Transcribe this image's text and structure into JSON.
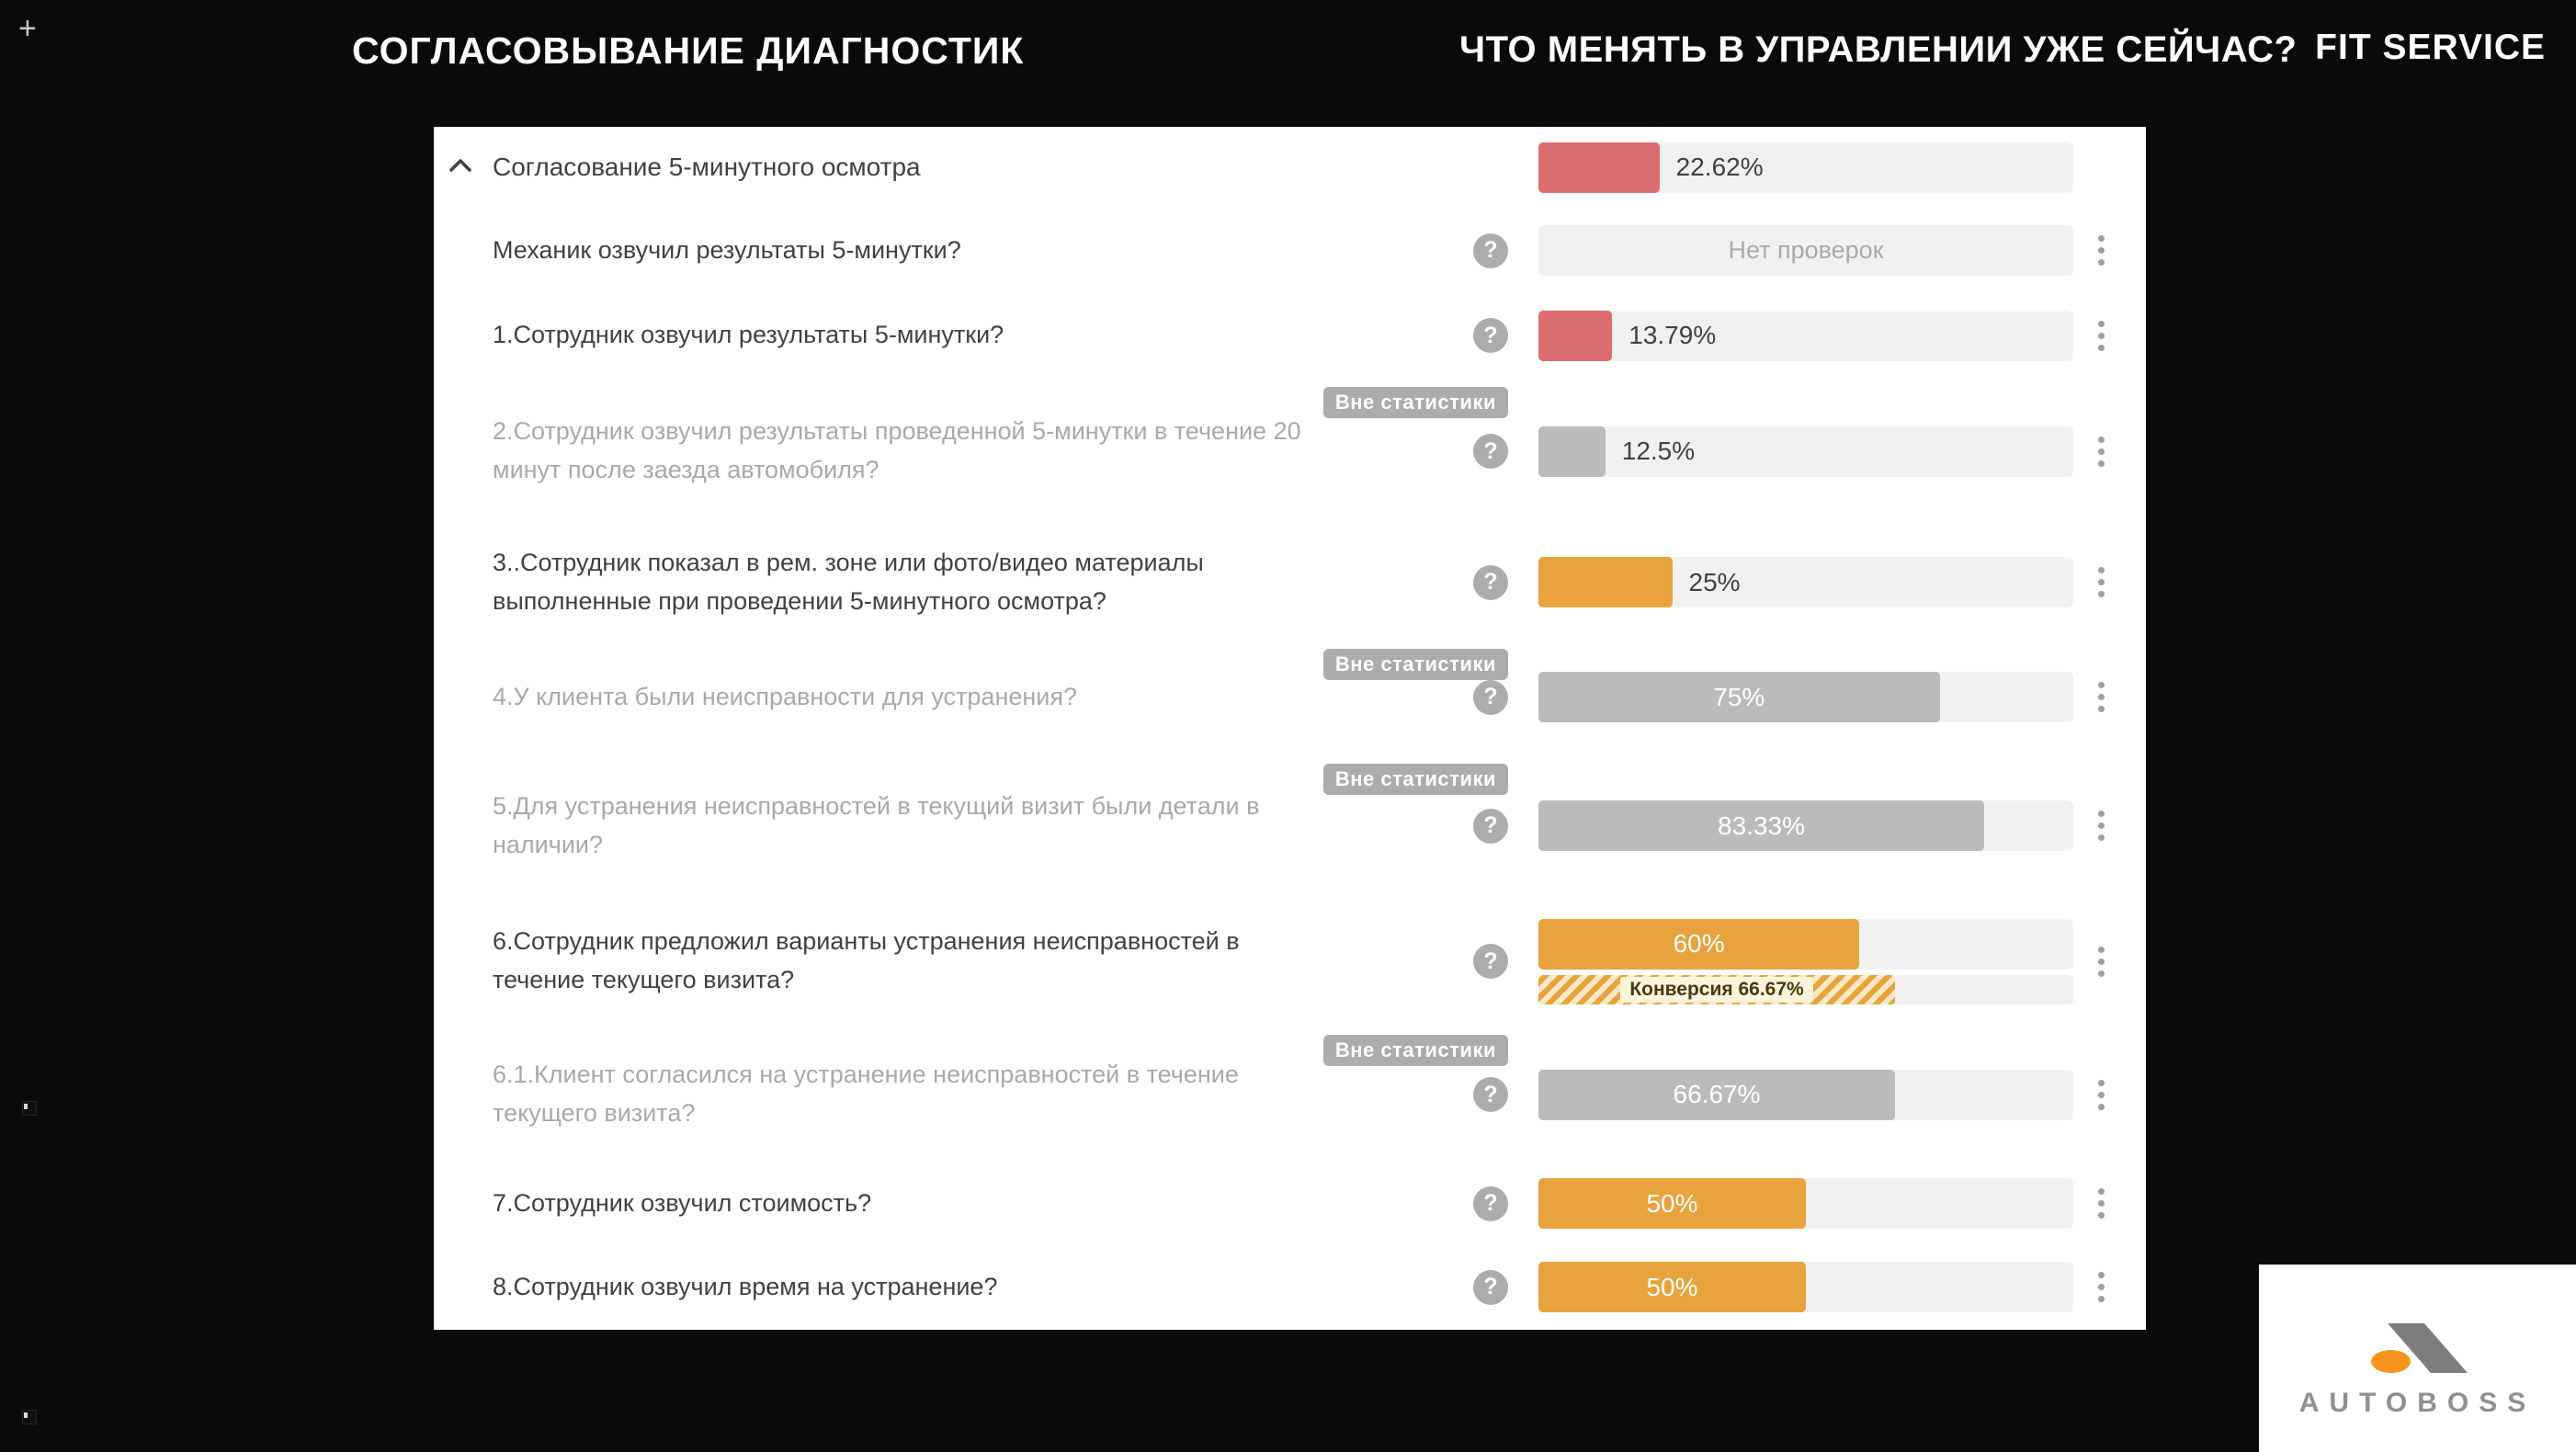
{
  "header": {
    "plus_mark": "+",
    "title_left": "СОГЛАСОВЫВАНИЕ ДИАГНОСТИК",
    "title_right": "ЧТО МЕНЯТЬ В УПРАВЛЕНИИ УЖЕ СЕЙЧАС?",
    "brand": "FIT SERVICE"
  },
  "colors": {
    "red": "#dd6d70",
    "orange": "#e8a33c",
    "grey": "#bbbbbb",
    "track": "#f1f1f2"
  },
  "panel": {
    "group": {
      "label": "Согласование 5-минутного осмотра",
      "pct": 22.62,
      "value": "22.62%",
      "color": "red"
    },
    "rows": [
      {
        "label": "Механик озвучил результаты 5-минутки?",
        "muted": false,
        "bar": {
          "empty": true,
          "label": "Нет проверок"
        }
      },
      {
        "label": "1.Сотрудник озвучил результаты 5-минутки?",
        "muted": false,
        "bar": {
          "color": "red",
          "pct": 13.79,
          "label": "13.79%",
          "inside": false
        }
      },
      {
        "label": "2.Сотрудник озвучил результаты проведенной 5-минутки в течение 20\nминут после заезда автомобиля?",
        "muted": true,
        "badge": "Вне статистики",
        "bar": {
          "color": "grey",
          "pct": 12.5,
          "label": "12.5%",
          "inside": false
        }
      },
      {
        "label": "3..Сотрудник показал в рем. зоне или фото/видео материалы\nвыполненные при проведении 5-минутного осмотра?",
        "muted": false,
        "bar": {
          "color": "orange",
          "pct": 25,
          "label": "25%",
          "inside": false
        }
      },
      {
        "label": "4.У клиента были неисправности для устранения?",
        "muted": true,
        "badge": "Вне статистики",
        "bar": {
          "color": "grey",
          "pct": 75,
          "label": "75%",
          "inside": true
        }
      },
      {
        "label": "5.Для устранения неисправностей в текущий визит были детали в\nналичии?",
        "muted": true,
        "badge": "Вне статистики",
        "bar": {
          "color": "grey",
          "pct": 83.33,
          "label": "83.33%",
          "inside": true
        }
      },
      {
        "label": "6.Сотрудник предложил варианты устранения неисправностей в\nтечение текущего визита?",
        "muted": false,
        "bar": {
          "color": "orange",
          "pct": 60,
          "label": "60%",
          "inside": true
        },
        "conversion": {
          "pct": 66.67,
          "label": "Конверсия 66.67%"
        }
      },
      {
        "label": "6.1.Клиент согласился на устранение неисправностей в течение\nтекущего визита?",
        "muted": true,
        "badge": "Вне статистики",
        "bar": {
          "color": "grey",
          "pct": 66.67,
          "label": "66.67%",
          "inside": true
        }
      },
      {
        "label": "7.Сотрудник озвучил стоимость?",
        "muted": false,
        "bar": {
          "color": "orange",
          "pct": 50,
          "label": "50%",
          "inside": true
        }
      },
      {
        "label": "8.Сотрудник озвучил время на устранение?",
        "muted": false,
        "bar": {
          "color": "orange",
          "pct": 50,
          "label": "50%",
          "inside": true
        }
      }
    ],
    "help_glyph": "?"
  },
  "logo": {
    "text": "AUTOBOSS"
  }
}
